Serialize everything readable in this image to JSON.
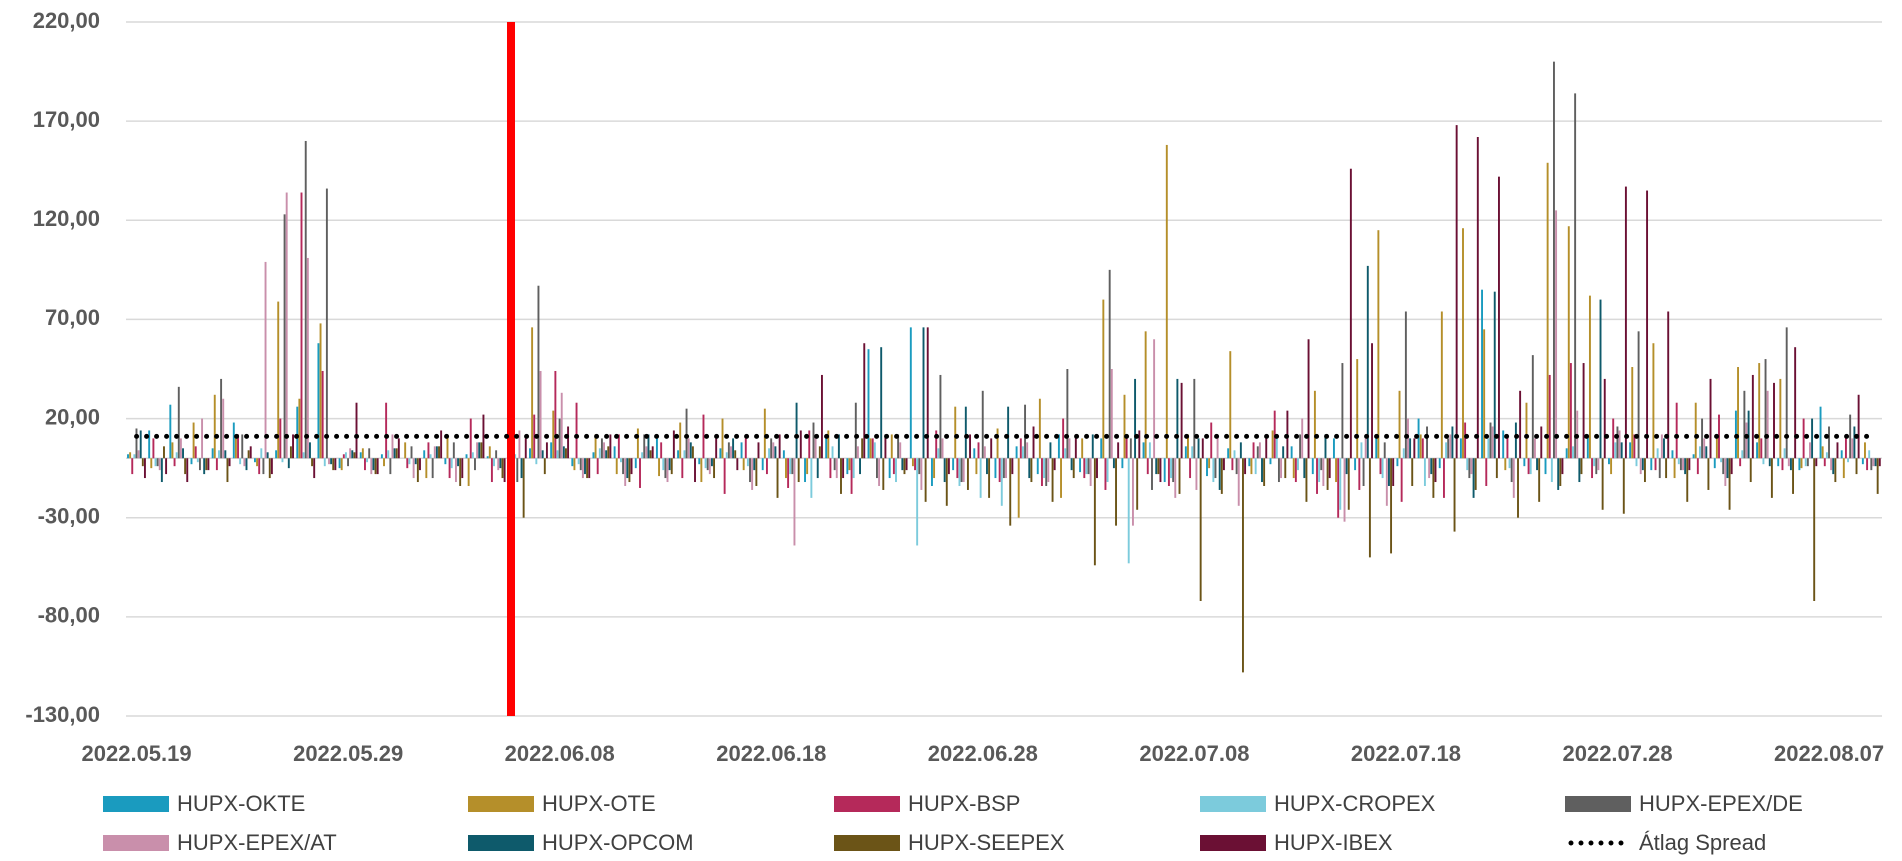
{
  "chart_data": {
    "type": "bar",
    "categories": [
      "2022.05.19",
      null,
      null,
      null,
      null,
      null,
      null,
      null,
      null,
      null,
      "2022.05.29",
      null,
      null,
      null,
      null,
      null,
      null,
      null,
      null,
      null,
      "2022.06.08",
      null,
      null,
      null,
      null,
      null,
      null,
      null,
      null,
      null,
      "2022.06.18",
      null,
      null,
      null,
      null,
      null,
      null,
      null,
      null,
      null,
      "2022.06.28",
      null,
      null,
      null,
      null,
      null,
      null,
      null,
      null,
      null,
      "2022.07.08",
      null,
      null,
      null,
      null,
      null,
      null,
      null,
      null,
      null,
      "2022.07.18",
      null,
      null,
      null,
      null,
      null,
      null,
      null,
      null,
      null,
      "2022.07.28",
      null,
      null,
      null,
      null,
      null,
      null,
      null,
      null,
      null,
      "2022.08.07",
      null,
      null
    ],
    "ylim": [
      -130,
      220
    ],
    "yticks": [
      {
        "value": -130,
        "label": "-130,00"
      },
      {
        "value": -80,
        "label": "-80,00"
      },
      {
        "value": -30,
        "label": "-30,00"
      },
      {
        "value": 20,
        "label": "20,00"
      },
      {
        "value": 70,
        "label": "70,00"
      },
      {
        "value": 120,
        "label": "120,00"
      },
      {
        "value": 170,
        "label": "170,00"
      },
      {
        "value": 220,
        "label": "220,00"
      }
    ],
    "grid": true,
    "legend": "bottom",
    "series": [
      {
        "name": "HUPX-OKTE",
        "color": "#1a9bbf",
        "values": [
          2,
          14,
          27,
          -3,
          5,
          18,
          -2,
          4,
          26,
          58,
          -5,
          3,
          2,
          0,
          4,
          -3,
          2,
          1,
          3,
          5,
          8,
          -4,
          3,
          6,
          -5,
          12,
          4,
          -3,
          5,
          8,
          -6,
          4,
          -12,
          10,
          -8,
          55,
          -10,
          66,
          -14,
          -6,
          5,
          -10,
          6,
          -8,
          12,
          -7,
          10,
          -5,
          8,
          -12,
          6,
          -9,
          5,
          -4,
          -3,
          6,
          -8,
          10,
          -6,
          12,
          -4,
          20,
          -5,
          10,
          85,
          14,
          -4,
          -8,
          5,
          12,
          -3,
          8,
          -6,
          4,
          2,
          -5,
          24,
          8,
          -4,
          -6,
          26,
          4,
          -3
        ]
      },
      {
        "name": "HUPX-OTE",
        "color": "#b58f2a",
        "values": [
          3,
          -5,
          8,
          18,
          32,
          10,
          -4,
          79,
          30,
          68,
          -6,
          5,
          -4,
          8,
          -10,
          12,
          -14,
          6,
          -5,
          66,
          24,
          -6,
          12,
          -8,
          15,
          -9,
          18,
          -12,
          20,
          -6,
          25,
          -10,
          -8,
          14,
          -6,
          10,
          12,
          -4,
          -10,
          26,
          -8,
          15,
          -30,
          30,
          -20,
          10,
          80,
          32,
          64,
          158,
          12,
          -5,
          54,
          -8,
          14,
          -10,
          34,
          -12,
          50,
          115,
          34,
          12,
          74,
          116,
          65,
          -6,
          28,
          149,
          117,
          82,
          -8,
          46,
          58,
          -10,
          28,
          12,
          46,
          48,
          40,
          -5,
          6,
          -10,
          8
        ]
      },
      {
        "name": "HUPX-BSP",
        "color": "#b5295a",
        "values": [
          -8,
          10,
          -4,
          6,
          -6,
          12,
          -8,
          20,
          134,
          44,
          2,
          -6,
          28,
          -5,
          8,
          -10,
          20,
          -12,
          12,
          22,
          44,
          28,
          -8,
          12,
          -15,
          8,
          -10,
          22,
          -18,
          10,
          -8,
          -15,
          14,
          -10,
          -18,
          10,
          -8,
          -6,
          14,
          -10,
          8,
          -12,
          10,
          -14,
          20,
          -10,
          -16,
          12,
          -8,
          -14,
          -10,
          18,
          -6,
          8,
          24,
          -12,
          -18,
          -30,
          -16,
          -8,
          -22,
          10,
          -20,
          18,
          -14,
          12,
          -8,
          42,
          48,
          -10,
          20,
          12,
          -6,
          28,
          -8,
          22,
          -4,
          10,
          -6,
          20,
          -4,
          12,
          -6
        ]
      },
      {
        "name": "HUPX-CROPEX",
        "color": "#7ccbdc",
        "values": [
          2,
          -4,
          3,
          -2,
          4,
          -3,
          5,
          -2,
          3,
          -4,
          3,
          -2,
          4,
          -3,
          2,
          -5,
          3,
          -4,
          2,
          -3,
          4,
          -3,
          5,
          -2,
          3,
          -6,
          4,
          -5,
          3,
          -4,
          5,
          -8,
          -20,
          6,
          -10,
          8,
          -12,
          -44,
          5,
          -14,
          -20,
          -24,
          6,
          -10,
          5,
          -8,
          -12,
          -53,
          8,
          -10,
          6,
          -12,
          4,
          -8,
          10,
          -6,
          -12,
          -26,
          8,
          -10,
          5,
          -14,
          8,
          -6,
          10,
          -5,
          -8,
          -12,
          6,
          -4,
          8,
          -4,
          5,
          -3,
          6,
          -2,
          4,
          -3,
          5,
          -4,
          3,
          -2,
          4
        ]
      },
      {
        "name": "HUPX-EPEX/DE",
        "color": "#5f5f5f",
        "values": [
          15,
          -4,
          36,
          -6,
          40,
          12,
          -8,
          123,
          160,
          136,
          -4,
          5,
          -8,
          6,
          -10,
          8,
          -6,
          4,
          -12,
          87,
          20,
          -6,
          10,
          -8,
          12,
          -10,
          25,
          -6,
          8,
          -12,
          10,
          -8,
          18,
          -6,
          28,
          -10,
          12,
          -8,
          42,
          -12,
          34,
          -10,
          27,
          -14,
          45,
          -8,
          95,
          10,
          -16,
          -12,
          40,
          -10,
          -8,
          6,
          -12,
          12,
          -6,
          48,
          -14,
          8,
          74,
          16,
          10,
          -10,
          18,
          -12,
          52,
          200,
          184,
          -8,
          16,
          64,
          -10,
          -6,
          20,
          -8,
          34,
          50,
          66,
          -4,
          16,
          22,
          -6
        ]
      },
      {
        "name": "HUPX-EPEX/AT",
        "color": "#c98fab",
        "values": [
          4,
          -6,
          10,
          20,
          30,
          -4,
          99,
          134,
          101,
          -3,
          5,
          -8,
          12,
          -10,
          6,
          -12,
          8,
          -6,
          14,
          44,
          33,
          -10,
          8,
          -14,
          6,
          -12,
          10,
          -8,
          6,
          -16,
          8,
          -44,
          12,
          -10,
          6,
          -14,
          8,
          -16,
          10,
          -12,
          6,
          -10,
          8,
          -12,
          10,
          -14,
          45,
          -34,
          60,
          -20,
          -16,
          12,
          -24,
          8,
          -10,
          20,
          -14,
          -32,
          10,
          -24,
          20,
          -10,
          12,
          -8,
          16,
          -20,
          10,
          125,
          24,
          -6,
          14,
          -8,
          12,
          -6,
          10,
          -14,
          18,
          34,
          -4,
          8,
          -6,
          10,
          -4
        ]
      },
      {
        "name": "HUPX-OPCOM",
        "color": "#0e5a6b",
        "values": [
          14,
          -12,
          5,
          -8,
          4,
          -6,
          3,
          -5,
          8,
          -3,
          4,
          -6,
          5,
          -3,
          6,
          -4,
          8,
          -5,
          -10,
          4,
          6,
          -8,
          4,
          -10,
          12,
          -6,
          8,
          -4,
          10,
          -6,
          6,
          28,
          -10,
          12,
          -8,
          56,
          -6,
          66,
          -12,
          26,
          -8,
          26,
          -10,
          8,
          -6,
          12,
          -5,
          40,
          -8,
          40,
          10,
          -16,
          8,
          -12,
          6,
          -10,
          12,
          -8,
          97,
          -14,
          10,
          -8,
          16,
          -20,
          84,
          18,
          -6,
          -16,
          -12,
          80,
          8,
          -6,
          10,
          -8,
          6,
          -10,
          24,
          -4,
          -6,
          20,
          -8,
          16,
          -4
        ]
      },
      {
        "name": "HUPX-SEEPEX",
        "color": "#6b5417",
        "values": [
          -4,
          6,
          -8,
          -6,
          -12,
          4,
          -10,
          6,
          -4,
          -6,
          3,
          -8,
          5,
          -12,
          6,
          -14,
          8,
          -10,
          -30,
          -8,
          5,
          -10,
          6,
          -12,
          4,
          -8,
          6,
          -10,
          4,
          -14,
          -20,
          -12,
          6,
          -18,
          10,
          -16,
          -8,
          -22,
          -24,
          -16,
          -20,
          -34,
          -12,
          -22,
          -10,
          -54,
          -34,
          -26,
          -8,
          -18,
          -72,
          -18,
          -108,
          -14,
          -10,
          -22,
          -16,
          -26,
          -50,
          -48,
          -14,
          -20,
          -37,
          -16,
          -10,
          -30,
          -22,
          -14,
          -8,
          -26,
          -28,
          -12,
          -10,
          -22,
          -16,
          -26,
          -12,
          -20,
          -18,
          -72,
          -12,
          -8,
          -18
        ]
      },
      {
        "name": "HUPX-IBEX",
        "color": "#6b1034",
        "values": [
          -10,
          -8,
          -12,
          -6,
          -4,
          6,
          -8,
          12,
          -10,
          -6,
          28,
          -8,
          10,
          -6,
          14,
          -10,
          22,
          -12,
          10,
          8,
          16,
          -10,
          12,
          -8,
          6,
          14,
          -12,
          10,
          -6,
          8,
          12,
          14,
          42,
          -10,
          58,
          12,
          -6,
          66,
          -8,
          12,
          10,
          -8,
          16,
          -6,
          12,
          -10,
          8,
          14,
          -12,
          38,
          10,
          -6,
          -8,
          12,
          24,
          60,
          -10,
          146,
          58,
          -14,
          10,
          -12,
          168,
          162,
          142,
          34,
          16,
          -8,
          48,
          40,
          137,
          135,
          74,
          -6,
          40,
          -8,
          42,
          38,
          56,
          -4,
          8,
          32,
          -4
        ]
      },
      {
        "name": "Átlag Spread",
        "color": "#000000",
        "type": "line",
        "dash": "dotted",
        "value": 11
      }
    ]
  }
}
